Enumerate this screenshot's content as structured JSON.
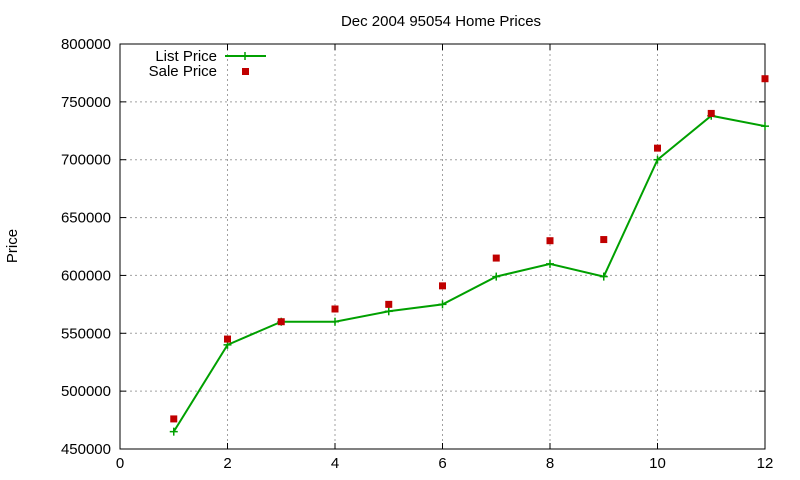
{
  "chart_data": {
    "type": "line",
    "title": "Dec 2004 95054 Home Prices",
    "xlabel": "",
    "ylabel": "Price",
    "xlim": [
      0,
      12
    ],
    "ylim": [
      450000,
      800000
    ],
    "xticks": [
      0,
      2,
      4,
      6,
      8,
      10,
      12
    ],
    "yticks": [
      450000,
      500000,
      550000,
      600000,
      650000,
      700000,
      750000,
      800000
    ],
    "xtick_labels": [
      "0",
      "2",
      "4",
      "6",
      "8",
      "10",
      "12"
    ],
    "ytick_labels": [
      "450000",
      "500000",
      "550000",
      "600000",
      "650000",
      "700000",
      "750000",
      "800000"
    ],
    "grid": true,
    "legend_position": "top-left",
    "series": [
      {
        "name": "List Price",
        "style": "linespoints",
        "marker": "plus",
        "color": "#00a000",
        "x": [
          1,
          2,
          3,
          4,
          5,
          6,
          7,
          8,
          9,
          10,
          11,
          12
        ],
        "y": [
          465000,
          540000,
          560000,
          560000,
          569000,
          575000,
          599000,
          610000,
          599000,
          700000,
          738000,
          729000
        ]
      },
      {
        "name": "Sale Price",
        "style": "points",
        "marker": "square",
        "color": "#c00000",
        "x": [
          1,
          2,
          3,
          4,
          5,
          6,
          7,
          8,
          9,
          10,
          11,
          12
        ],
        "y": [
          476000,
          545000,
          560000,
          571000,
          575000,
          591000,
          615000,
          630000,
          631000,
          710000,
          740000,
          770000
        ]
      }
    ]
  }
}
